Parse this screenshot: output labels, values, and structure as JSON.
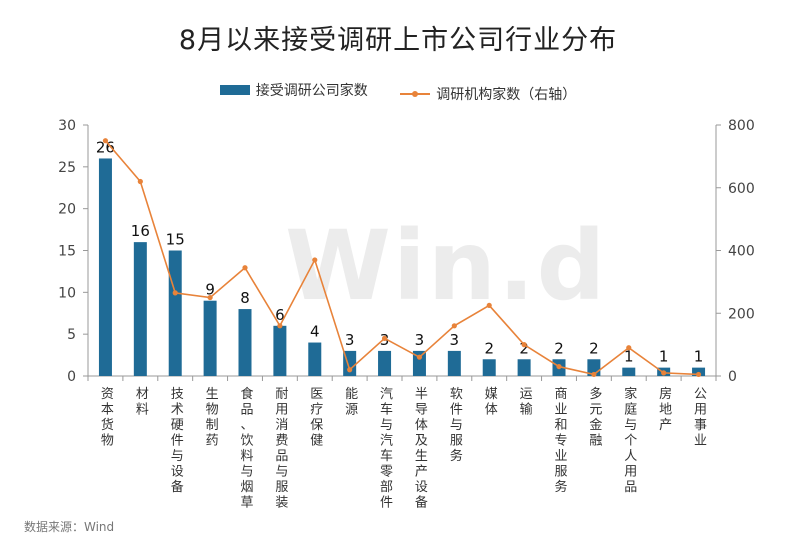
{
  "title": "8月以来接受调研上市公司行业分布",
  "source": "数据来源：Wind",
  "watermark": "Win.d",
  "colors": {
    "bar": "#1f6b96",
    "line": "#e8833a",
    "axis": "#999999"
  },
  "chart_data": {
    "type": "bar",
    "title": "8月以来接受调研上市公司行业分布",
    "categories": [
      "资本货物",
      "材料",
      "技术硬件与设备",
      "生物制药",
      "食品、饮料与烟草",
      "耐用消费品与服装",
      "医疗保健",
      "能源",
      "汽车与汽车零部件",
      "半导体及生产设备",
      "软件与服务",
      "媒体",
      "运输",
      "商业和专业服务",
      "多元金融",
      "家庭与个人用品",
      "房地产",
      "公用事业"
    ],
    "series": [
      {
        "name": "接受调研公司家数",
        "type": "bar",
        "axis": "left",
        "values": [
          26,
          16,
          15,
          9,
          8,
          6,
          4,
          3,
          3,
          3,
          3,
          2,
          2,
          2,
          2,
          1,
          1,
          1
        ]
      },
      {
        "name": "调研机构家数（右轴）",
        "type": "line",
        "axis": "right",
        "values": [
          750,
          620,
          265,
          250,
          345,
          160,
          370,
          20,
          120,
          60,
          160,
          225,
          100,
          30,
          5,
          90,
          10,
          5
        ]
      }
    ],
    "y_left": {
      "min": 0,
      "max": 30,
      "ticks": [
        0,
        5,
        10,
        15,
        20,
        25,
        30
      ]
    },
    "y_right": {
      "min": 0,
      "max": 800,
      "ticks": [
        0,
        200,
        400,
        600,
        800
      ]
    },
    "legend_position": "top-center",
    "grid": false
  }
}
